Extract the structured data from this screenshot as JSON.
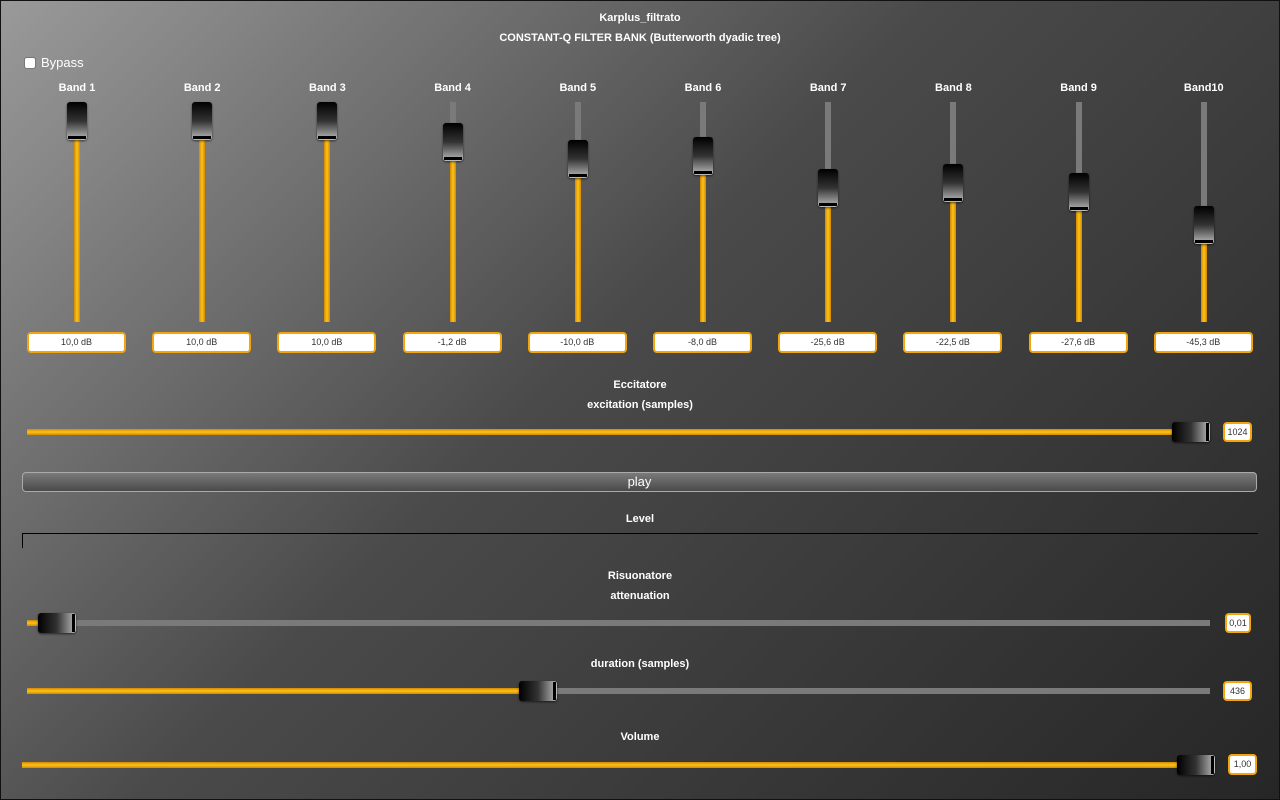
{
  "header": {
    "title": "Karplus_filtrato",
    "subtitle": "CONSTANT-Q FILTER BANK (Butterworth dyadic tree)"
  },
  "bypass": {
    "label": "Bypass",
    "checked": false
  },
  "bands": [
    {
      "label": "Band 1",
      "value": "10,0 dB",
      "level": 1.0
    },
    {
      "label": "Band 2",
      "value": "10,0 dB",
      "level": 1.0
    },
    {
      "label": "Band 3",
      "value": "10,0 dB",
      "level": 1.0
    },
    {
      "label": "Band 4",
      "value": "-1,2 dB",
      "level": 0.885
    },
    {
      "label": "Band 5",
      "value": "-10,0 dB",
      "level": 0.79
    },
    {
      "label": "Band 6",
      "value": "-8,0 dB",
      "level": 0.81
    },
    {
      "label": "Band 7",
      "value": "-25,6 dB",
      "level": 0.63
    },
    {
      "label": "Band 8",
      "value": "-22,5 dB",
      "level": 0.66
    },
    {
      "label": "Band 9",
      "value": "-27,6 dB",
      "level": 0.61
    },
    {
      "label": "Band10",
      "value": "-45,3 dB",
      "level": 0.43
    }
  ],
  "exciter": {
    "section_label": "Eccitatore",
    "excitation": {
      "label": "excitation (samples)",
      "value": "1024",
      "level": 1.0
    }
  },
  "play": {
    "label": "play"
  },
  "level": {
    "label": "Level"
  },
  "resonator": {
    "section_label": "Risuonatore",
    "attenuation": {
      "label": "attenuation",
      "value": "0,01",
      "level": 0.01
    },
    "duration": {
      "label": "duration (samples)",
      "value": "436",
      "level": 0.43
    }
  },
  "volume": {
    "label": "Volume",
    "value": "1,00",
    "level": 1.0
  },
  "colors": {
    "accent": "#ffc21a",
    "track": "#7a7a7a",
    "border": "#f2a60c"
  }
}
